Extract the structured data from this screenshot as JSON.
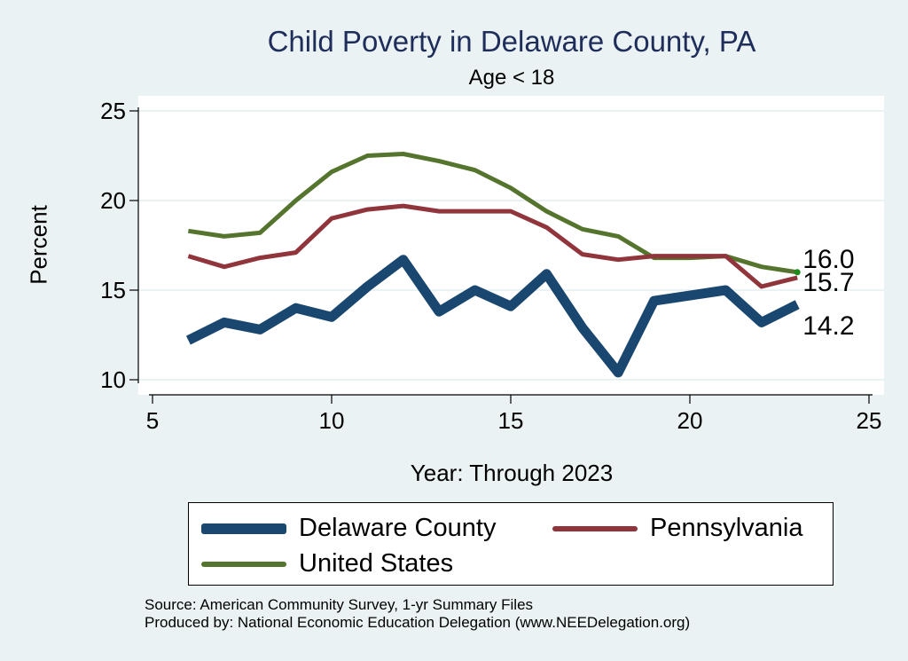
{
  "chart_data": {
    "type": "line",
    "title": "Child Poverty in Delaware County, PA",
    "subtitle": "Age < 18",
    "xlabel": "Year: Through 2023",
    "ylabel": "Percent",
    "xlim": [
      5,
      25
    ],
    "ylim": [
      10,
      25
    ],
    "xticks": [
      5,
      10,
      15,
      20,
      25
    ],
    "yticks": [
      10,
      15,
      20,
      25
    ],
    "x": [
      6,
      7,
      8,
      9,
      10,
      11,
      12,
      13,
      14,
      15,
      16,
      17,
      18,
      19,
      20,
      21,
      22,
      23
    ],
    "series": [
      {
        "name": "Delaware County",
        "color": "#1a476f",
        "values": [
          12.2,
          13.2,
          12.8,
          14.0,
          13.5,
          15.2,
          16.7,
          13.8,
          15.0,
          14.1,
          15.9,
          12.9,
          10.4,
          14.4,
          14.7,
          15.0,
          13.2,
          14.2
        ],
        "end_label": "14.2"
      },
      {
        "name": "Pennsylvania",
        "color": "#90353b",
        "values": [
          16.9,
          16.3,
          16.8,
          17.1,
          19.0,
          19.5,
          19.7,
          19.4,
          19.4,
          19.4,
          18.5,
          17.0,
          16.7,
          16.9,
          16.9,
          16.9,
          15.2,
          15.7
        ],
        "end_label": "15.7"
      },
      {
        "name": "United States",
        "color": "#55752f",
        "values": [
          18.3,
          18.0,
          18.2,
          20.0,
          21.6,
          22.5,
          22.6,
          22.2,
          21.7,
          20.7,
          19.4,
          18.4,
          18.0,
          16.8,
          16.8,
          16.9,
          16.3,
          16.0
        ],
        "end_label": "16.0"
      }
    ],
    "legend": {
      "position": "bottom",
      "items": [
        "Delaware County",
        "Pennsylvania",
        "United States"
      ]
    }
  },
  "source_line": "Source: American Community Survey, 1-yr Summary Files",
  "produced_line": "Produced by: National Economic Education Delegation (www.NEEDelegation.org)"
}
